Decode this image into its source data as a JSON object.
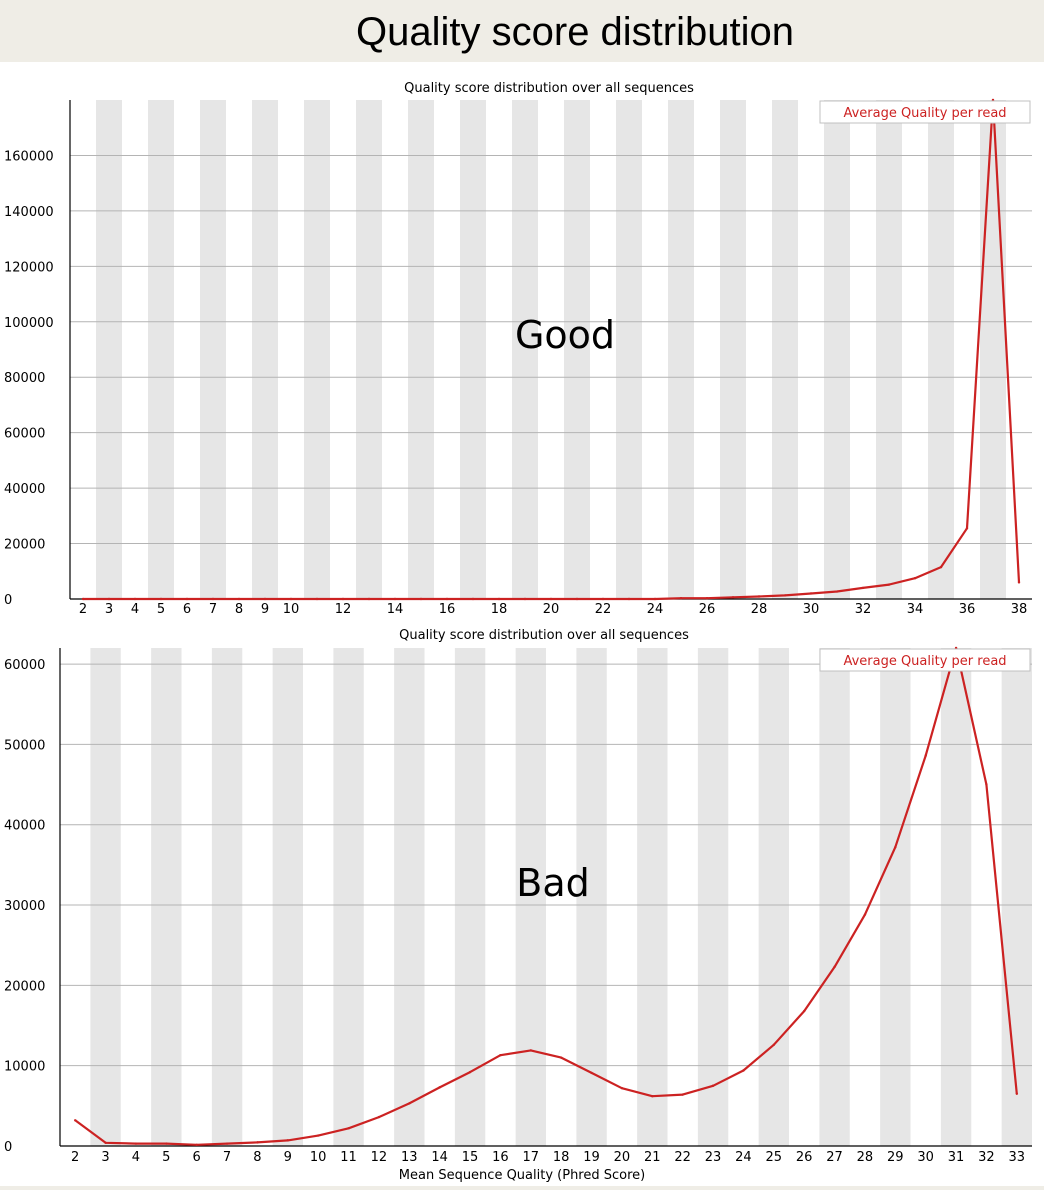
{
  "slide_title": "Quality score distribution",
  "chart_data": [
    {
      "type": "line",
      "title": "Quality score distribution over all sequences",
      "xlabel": "",
      "ylabel": "",
      "annotation": "Good",
      "legend": {
        "label": "Average Quality per read",
        "placement": "top-right",
        "color": "#cc2222"
      },
      "x_categories": [
        2,
        3,
        4,
        5,
        6,
        7,
        8,
        9,
        10,
        11,
        12,
        13,
        14,
        15,
        16,
        17,
        18,
        19,
        20,
        21,
        22,
        23,
        24,
        25,
        26,
        27,
        28,
        29,
        30,
        31,
        32,
        33,
        34,
        35,
        36,
        37,
        38
      ],
      "x_tick_labels": [
        "2",
        "3",
        "4",
        "5",
        "6",
        "7",
        "8",
        "9",
        "10",
        "",
        "12",
        "",
        "14",
        "",
        "16",
        "",
        "18",
        "",
        "20",
        "",
        "22",
        "",
        "24",
        "",
        "26",
        "",
        "28",
        "",
        "30",
        "",
        "32",
        "",
        "34",
        "",
        "36",
        "",
        "38"
      ],
      "ylim": [
        0,
        180000
      ],
      "y_ticks": [
        0,
        20000,
        40000,
        60000,
        80000,
        100000,
        120000,
        140000,
        160000
      ],
      "grid": true,
      "series": [
        {
          "name": "Average Quality per read",
          "color": "#cc2222",
          "x": [
            2,
            3,
            4,
            5,
            6,
            7,
            8,
            9,
            10,
            11,
            12,
            13,
            14,
            15,
            16,
            17,
            18,
            19,
            20,
            21,
            22,
            23,
            24,
            25,
            26,
            27,
            28,
            29,
            30,
            31,
            32,
            33,
            34,
            35,
            36,
            37,
            38
          ],
          "values": [
            0,
            0,
            0,
            0,
            0,
            0,
            0,
            0,
            0,
            0,
            0,
            0,
            0,
            0,
            0,
            0,
            0,
            0,
            0,
            0,
            0,
            0,
            0,
            300,
            300,
            600,
            900,
            1300,
            2000,
            2700,
            4000,
            5200,
            7500,
            11500,
            25500,
            180000,
            6000
          ]
        }
      ]
    },
    {
      "type": "line",
      "title": "Quality score distribution over all sequences",
      "xlabel": "Mean Sequence Quality (Phred Score)",
      "ylabel": "",
      "annotation": "Bad",
      "legend": {
        "label": "Average Quality per read",
        "placement": "top-right",
        "color": "#cc2222"
      },
      "x_categories": [
        2,
        3,
        4,
        5,
        6,
        7,
        8,
        9,
        10,
        11,
        12,
        13,
        14,
        15,
        16,
        17,
        18,
        19,
        20,
        21,
        22,
        23,
        24,
        25,
        26,
        27,
        28,
        29,
        30,
        31,
        32,
        33
      ],
      "x_tick_labels": [
        "2",
        "3",
        "4",
        "5",
        "6",
        "7",
        "8",
        "9",
        "10",
        "11",
        "12",
        "13",
        "14",
        "15",
        "16",
        "17",
        "18",
        "19",
        "20",
        "21",
        "22",
        "23",
        "24",
        "25",
        "26",
        "27",
        "28",
        "29",
        "30",
        "31",
        "32",
        "33"
      ],
      "ylim": [
        0,
        62000
      ],
      "y_ticks": [
        0,
        10000,
        20000,
        30000,
        40000,
        50000,
        60000
      ],
      "grid": true,
      "series": [
        {
          "name": "Average Quality per read",
          "color": "#cc2222",
          "x": [
            2,
            3,
            4,
            5,
            6,
            7,
            8,
            9,
            10,
            11,
            12,
            13,
            14,
            15,
            16,
            17,
            18,
            19,
            20,
            21,
            22,
            23,
            24,
            25,
            26,
            27,
            28,
            29,
            30,
            31,
            32,
            33
          ],
          "values": [
            3200,
            400,
            300,
            300,
            150,
            300,
            450,
            700,
            1300,
            2200,
            3600,
            5300,
            7300,
            9200,
            11300,
            11900,
            11000,
            9100,
            7200,
            6200,
            6400,
            7500,
            9400,
            12600,
            16800,
            22300,
            28800,
            37200,
            48600,
            62000,
            45000,
            6500
          ]
        }
      ]
    }
  ]
}
